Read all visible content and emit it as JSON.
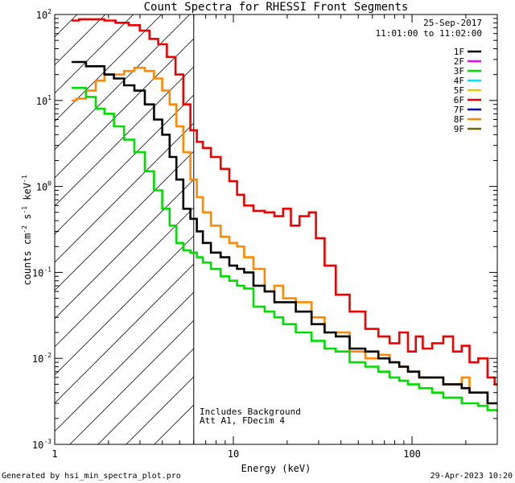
{
  "chart_data": {
    "type": "line",
    "title": "Count Spectra for RHESSI Front Segments",
    "xlabel": "Energy (keV)",
    "ylabel": "counts cm^-2 s^-1 keV^-1",
    "xscale": "log",
    "yscale": "log",
    "xlim": [
      1,
      300
    ],
    "ylim": [
      0.001,
      100
    ],
    "x_ticks": [
      {
        "value": 1,
        "label": "1"
      },
      {
        "value": 10,
        "label": "10"
      },
      {
        "value": 100,
        "label": "100"
      }
    ],
    "y_ticks": [
      {
        "value": 100,
        "base": "10",
        "exp": "2"
      },
      {
        "value": 10,
        "base": "10",
        "exp": "1"
      },
      {
        "value": 1,
        "base": "10",
        "exp": "0"
      },
      {
        "value": 0.1,
        "base": "10",
        "exp": "-1"
      },
      {
        "value": 0.01,
        "base": "10",
        "exp": "-2"
      },
      {
        "value": 0.001,
        "base": "10",
        "exp": "-3"
      }
    ],
    "hatched_region": [
      1,
      6.0
    ],
    "cutoff_energy": 6.0,
    "date": "25-Sep-2017",
    "time_range": "11:01:00 to 11:02:00",
    "annotation_lines": [
      "Includes Background",
      "Att A1, FDecim 4"
    ],
    "legend_position": "top-right",
    "legend": [
      {
        "name": "1F",
        "color": "#000000"
      },
      {
        "name": "2F",
        "color": "#ff00ff"
      },
      {
        "name": "3F",
        "color": "#00dd00"
      },
      {
        "name": "4F",
        "color": "#00e5ff"
      },
      {
        "name": "5F",
        "color": "#e6c800"
      },
      {
        "name": "6F",
        "color": "#ee0000"
      },
      {
        "name": "7F",
        "color": "#0000cc"
      },
      {
        "name": "8F",
        "color": "#ff8800"
      },
      {
        "name": "9F",
        "color": "#6b6b00"
      }
    ],
    "series": [
      {
        "name": "6F",
        "color": "#ee0000",
        "x": [
          1.25,
          1.5,
          1.8,
          2.0,
          2.4,
          2.8,
          3.2,
          3.6,
          4.0,
          4.5,
          5.0,
          5.5,
          6.0,
          6.5,
          7.0,
          8.0,
          9.0,
          10.0,
          11.0,
          12.0,
          14.0,
          16.0,
          18.0,
          20.0,
          22.0,
          25.0,
          28.0,
          30.0,
          35.0,
          40.0,
          50.0,
          60.0,
          70.0,
          80.0,
          90.0,
          100.0,
          110.0,
          120.0,
          140.0,
          160.0,
          180.0,
          200.0,
          220.0,
          250.0,
          280.0,
          300.0
        ],
        "y": [
          85,
          88,
          88,
          85,
          80,
          75,
          65,
          52,
          45,
          32,
          20,
          9,
          4.5,
          3.3,
          2.8,
          2.2,
          1.6,
          1.15,
          0.8,
          0.6,
          0.52,
          0.5,
          0.45,
          0.55,
          0.35,
          0.45,
          0.5,
          0.25,
          0.12,
          0.055,
          0.035,
          0.022,
          0.018,
          0.015,
          0.02,
          0.012,
          0.018,
          0.013,
          0.015,
          0.018,
          0.012,
          0.014,
          0.009,
          0.01,
          0.006,
          0.005
        ]
      },
      {
        "name": "8F",
        "color": "#ff8800",
        "x": [
          1.25,
          1.4,
          1.6,
          1.8,
          2.0,
          2.3,
          2.6,
          3.0,
          3.4,
          3.8,
          4.2,
          4.6,
          5.0,
          5.5,
          6.0,
          6.5,
          7.0,
          8.0,
          9.0,
          10.0,
          11.0,
          12.0,
          14.0,
          16.0,
          18.0,
          20.0,
          25.0,
          30.0,
          35.0,
          40.0,
          50.0,
          60.0,
          70.0,
          80.0,
          90.0,
          100.0,
          120.0,
          140.0,
          160.0,
          180.0,
          200.0,
          220.0,
          250.0,
          280.0,
          300.0
        ],
        "y": [
          10,
          10.5,
          13,
          17,
          20,
          20,
          22,
          24,
          22,
          18,
          13,
          9,
          5,
          2.5,
          1.2,
          0.75,
          0.5,
          0.35,
          0.26,
          0.22,
          0.2,
          0.15,
          0.11,
          0.06,
          0.07,
          0.05,
          0.045,
          0.03,
          0.02,
          0.02,
          0.012,
          0.01,
          0.011,
          0.009,
          0.008,
          0.007,
          0.006,
          0.006,
          0.005,
          0.005,
          0.006,
          0.004,
          0.004,
          0.003,
          0.003
        ]
      },
      {
        "name": "1F",
        "color": "#000000",
        "x": [
          1.25,
          1.4,
          1.6,
          1.8,
          2.0,
          2.3,
          2.6,
          3.0,
          3.4,
          3.8,
          4.2,
          4.6,
          5.0,
          5.5,
          6.0,
          6.5,
          7.0,
          8.0,
          9.0,
          10.0,
          11.0,
          12.0,
          14.0,
          16.0,
          18.0,
          20.0,
          25.0,
          30.0,
          35.0,
          40.0,
          50.0,
          60.0,
          70.0,
          80.0,
          90.0,
          100.0,
          120.0,
          140.0,
          160.0,
          180.0,
          200.0,
          220.0,
          250.0,
          280.0,
          300.0
        ],
        "y": [
          28,
          28,
          25,
          25,
          20,
          18,
          15,
          13,
          9,
          6,
          4,
          2.2,
          1.2,
          0.55,
          0.42,
          0.3,
          0.22,
          0.17,
          0.15,
          0.12,
          0.11,
          0.1,
          0.07,
          0.06,
          0.045,
          0.045,
          0.035,
          0.025,
          0.02,
          0.018,
          0.013,
          0.012,
          0.01,
          0.009,
          0.008,
          0.007,
          0.006,
          0.006,
          0.005,
          0.005,
          0.0045,
          0.004,
          0.004,
          0.003,
          0.003
        ]
      },
      {
        "name": "3F",
        "color": "#00dd00",
        "x": [
          1.25,
          1.4,
          1.6,
          1.8,
          2.0,
          2.3,
          2.6,
          3.0,
          3.4,
          3.8,
          4.2,
          4.6,
          5.0,
          5.5,
          6.0,
          6.5,
          7.0,
          8.0,
          9.0,
          10.0,
          11.0,
          12.0,
          14.0,
          16.0,
          18.0,
          20.0,
          25.0,
          30.0,
          35.0,
          40.0,
          50.0,
          60.0,
          70.0,
          80.0,
          90.0,
          100.0,
          120.0,
          140.0,
          160.0,
          180.0,
          200.0,
          220.0,
          250.0,
          280.0,
          300.0
        ],
        "y": [
          14,
          14,
          11,
          8,
          7,
          5,
          3.5,
          2.5,
          1.5,
          0.9,
          0.55,
          0.35,
          0.22,
          0.18,
          0.17,
          0.15,
          0.13,
          0.11,
          0.09,
          0.08,
          0.07,
          0.065,
          0.04,
          0.035,
          0.03,
          0.025,
          0.02,
          0.016,
          0.013,
          0.012,
          0.009,
          0.008,
          0.007,
          0.006,
          0.0055,
          0.005,
          0.0045,
          0.004,
          0.0035,
          0.0035,
          0.003,
          0.003,
          0.0028,
          0.0025,
          0.0025
        ]
      }
    ]
  },
  "footer": {
    "generated_by": "Generated by hsi_min_spectra_plot.pro",
    "timestamp": "29-Apr-2023 10:20"
  }
}
